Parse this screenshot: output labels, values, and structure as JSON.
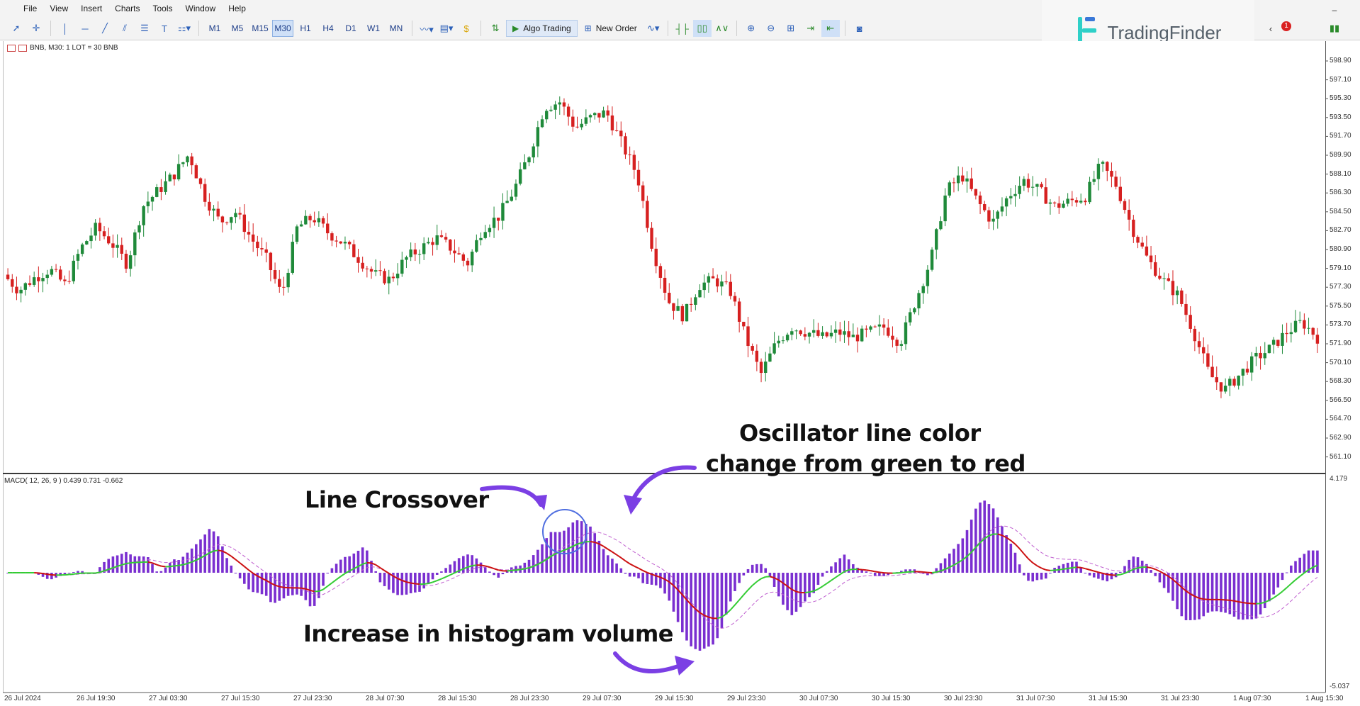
{
  "menu": [
    "File",
    "View",
    "Insert",
    "Charts",
    "Tools",
    "Window",
    "Help"
  ],
  "toolbar": {
    "timeframes": [
      "M1",
      "M5",
      "M15",
      "M30",
      "H1",
      "H4",
      "D1",
      "W1",
      "MN"
    ],
    "active_timeframe": "M30",
    "algo_trading_label": "Algo Trading",
    "new_order_label": "New Order"
  },
  "brand": {
    "name": "TradingFinder"
  },
  "notifications": {
    "count": "1"
  },
  "chart": {
    "caption": "BNB, M30:  1 LOT = 30 BNB",
    "macd_caption": "MACD( 12, 26, 9 ) 0.439 0.731 -0.662",
    "price_axis": [
      "598.90",
      "597.10",
      "595.30",
      "593.50",
      "591.70",
      "589.90",
      "588.10",
      "586.30",
      "584.50",
      "582.70",
      "580.90",
      "579.10",
      "577.30",
      "575.50",
      "573.70",
      "571.90",
      "570.10",
      "568.30",
      "566.50",
      "564.70",
      "562.90",
      "561.10"
    ],
    "macd_axis": [
      "4.179",
      "-5.037"
    ],
    "time_axis": [
      "26 Jul 2024",
      "26 Jul 19:30",
      "27 Jul 03:30",
      "27 Jul 15:30",
      "27 Jul 23:30",
      "28 Jul 07:30",
      "28 Jul 15:30",
      "28 Jul 23:30",
      "29 Jul 07:30",
      "29 Jul 15:30",
      "29 Jul 23:30",
      "30 Jul 07:30",
      "30 Jul 15:30",
      "30 Jul 23:30",
      "31 Jul 07:30",
      "31 Jul 15:30",
      "31 Jul 23:30",
      "1 Aug 07:30",
      "1 Aug 15:30"
    ]
  },
  "annotations": {
    "crossover": "Line Crossover",
    "color_change_line1": "Oscillator line color",
    "color_change_line2": "change from green to red",
    "histogram": "Increase in histogram volume"
  },
  "colors": {
    "bull": "#1f8a3a",
    "bear": "#d62020",
    "histogram": "#7a2fd0",
    "signal": "#c060d0",
    "macd_green": "#33cc33",
    "macd_red": "#cc1111",
    "arrow": "#7b3fe4"
  },
  "chart_data": {
    "type": "candlestick",
    "symbol": "BNB",
    "timeframe": "M30",
    "close_path": [
      578.5,
      577.0,
      578.2,
      579.0,
      577.5,
      581.0,
      583.0,
      581.5,
      579.5,
      585.0,
      586.5,
      588.0,
      590.0,
      586.0,
      583.5,
      584.5,
      582.0,
      580.0,
      576.5,
      583.0,
      584.0,
      582.5,
      581.5,
      580.0,
      578.5,
      578.0,
      580.0,
      581.0,
      582.0,
      581.0,
      579.5,
      583.0,
      584.0,
      586.5,
      590.0,
      594.5,
      595.0,
      592.5,
      593.5,
      594.0,
      591.0,
      588.0,
      581.0,
      576.0,
      574.5,
      577.5,
      578.0,
      577.0,
      572.5,
      569.0,
      572.0,
      573.5,
      573.0,
      572.5,
      573.0,
      572.5,
      573.0,
      573.5,
      572.0,
      576.0,
      580.0,
      586.5,
      588.0,
      585.5,
      583.5,
      586.0,
      587.5,
      586.5,
      585.0,
      585.5,
      586.0,
      589.0,
      587.0,
      583.0,
      580.0,
      578.0,
      576.5,
      573.0,
      569.0,
      567.5,
      569.0,
      570.5,
      571.5,
      573.0,
      574.0,
      572.5
    ],
    "macd": {
      "params": [
        12,
        26,
        9
      ],
      "value": 0.439,
      "signal": 0.731,
      "histogram": -0.662
    }
  }
}
